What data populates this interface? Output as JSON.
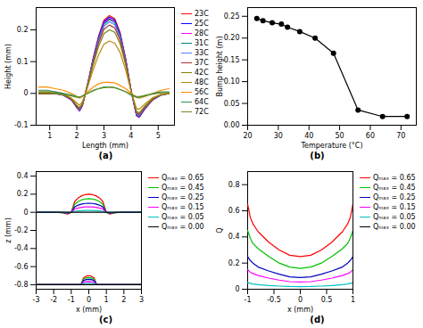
{
  "chart_data": [
    {
      "type": "line",
      "title": "(a)",
      "xlabel": "Length (mm)",
      "ylabel": "Height (mm)",
      "xlim": [
        0.5,
        5.6
      ],
      "xticks": [
        1,
        2,
        3,
        4,
        5
      ],
      "ylim": [
        -0.1,
        0.27
      ],
      "yticks": [
        -0.1,
        0,
        0.1,
        0.2
      ],
      "legend": "right",
      "x": [
        0.6,
        0.9,
        1.2,
        1.5,
        1.8,
        2,
        2.1,
        2.2,
        2.4,
        2.6,
        2.8,
        3,
        3.2,
        3.4,
        3.6,
        3.8,
        4,
        4.2,
        4.3,
        4.5,
        4.8,
        5.1,
        5.4
      ],
      "series": [
        {
          "name": "23C",
          "color": "#ff0000",
          "values": [
            0,
            0,
            0,
            -0.005,
            -0.02,
            -0.045,
            -0.055,
            -0.04,
            0.03,
            0.11,
            0.18,
            0.23,
            0.245,
            0.235,
            0.19,
            0.11,
            0.01,
            -0.07,
            -0.075,
            -0.05,
            -0.02,
            -0.005,
            0
          ]
        },
        {
          "name": "25C",
          "color": "#0000ff",
          "values": [
            0,
            0,
            0,
            -0.005,
            -0.02,
            -0.044,
            -0.054,
            -0.039,
            0.029,
            0.108,
            0.176,
            0.225,
            0.24,
            0.23,
            0.186,
            0.108,
            0.01,
            -0.069,
            -0.074,
            -0.049,
            -0.02,
            -0.005,
            0
          ]
        },
        {
          "name": "28C",
          "color": "#ff00ff",
          "values": [
            0,
            0,
            0,
            -0.005,
            -0.019,
            -0.043,
            -0.053,
            -0.038,
            0.029,
            0.105,
            0.173,
            0.221,
            0.235,
            0.225,
            0.182,
            0.105,
            0.01,
            -0.067,
            -0.072,
            -0.048,
            -0.019,
            -0.005,
            0
          ]
        },
        {
          "name": "31C",
          "color": "#008080",
          "values": [
            0,
            0,
            0,
            -0.005,
            -0.019,
            -0.043,
            -0.052,
            -0.038,
            0.028,
            0.104,
            0.17,
            0.218,
            0.232,
            0.223,
            0.18,
            0.104,
            0.009,
            -0.066,
            -0.071,
            -0.047,
            -0.019,
            -0.005,
            0
          ]
        },
        {
          "name": "33C",
          "color": "#4f81ff",
          "values": [
            0,
            0,
            0,
            -0.005,
            -0.018,
            -0.041,
            -0.05,
            -0.037,
            0.028,
            0.101,
            0.165,
            0.211,
            0.225,
            0.216,
            0.174,
            0.101,
            0.009,
            -0.064,
            -0.069,
            -0.046,
            -0.018,
            -0.005,
            0
          ]
        },
        {
          "name": "37C",
          "color": "#b03030",
          "values": [
            0,
            0,
            0,
            -0.004,
            -0.018,
            -0.04,
            -0.048,
            -0.035,
            0.026,
            0.097,
            0.158,
            0.202,
            0.215,
            0.206,
            0.167,
            0.097,
            0.009,
            -0.061,
            -0.066,
            -0.044,
            -0.018,
            -0.004,
            0
          ]
        },
        {
          "name": "42C",
          "color": "#808000",
          "values": [
            0,
            0,
            0,
            -0.004,
            -0.016,
            -0.037,
            -0.045,
            -0.033,
            0.024,
            0.09,
            0.147,
            0.188,
            0.2,
            0.192,
            0.155,
            0.09,
            0.008,
            -0.057,
            -0.061,
            -0.041,
            -0.016,
            -0.004,
            0
          ]
        },
        {
          "name": "48C",
          "color": "#b8860b",
          "values": [
            0.005,
            0.005,
            0.005,
            0,
            -0.015,
            -0.03,
            -0.037,
            -0.027,
            0.02,
            0.074,
            0.121,
            0.155,
            0.165,
            0.158,
            0.128,
            0.074,
            0.007,
            -0.047,
            -0.05,
            -0.034,
            -0.013,
            -0.003,
            0
          ]
        },
        {
          "name": "56C",
          "color": "#ff8c00",
          "values": [
            0.02,
            0.02,
            0.015,
            0.01,
            0,
            -0.01,
            -0.015,
            -0.01,
            0.005,
            0.02,
            0.03,
            0.035,
            0.035,
            0.033,
            0.025,
            0.015,
            0,
            -0.012,
            -0.015,
            -0.01,
            0,
            0.01,
            0.015
          ]
        },
        {
          "name": "64C",
          "color": "#2e8b57",
          "values": [
            0.01,
            0.01,
            0.005,
            0,
            -0.005,
            -0.01,
            -0.012,
            -0.008,
            0,
            0.01,
            0.015,
            0.02,
            0.02,
            0.018,
            0.012,
            0.005,
            -0.005,
            -0.012,
            -0.012,
            -0.008,
            0,
            0.005,
            0.005
          ]
        },
        {
          "name": "72C",
          "color": "#6b8e23",
          "values": [
            0.005,
            0.005,
            0,
            -0.003,
            -0.008,
            -0.012,
            -0.012,
            -0.008,
            0,
            0.008,
            0.015,
            0.018,
            0.02,
            0.018,
            0.012,
            0.005,
            -0.003,
            -0.01,
            -0.01,
            -0.006,
            -0.002,
            0.002,
            0.002
          ]
        }
      ]
    },
    {
      "type": "line",
      "title": "(b)",
      "xlabel": "Temperature (°C)",
      "ylabel": "Bump height (m)",
      "xlim": [
        20,
        75
      ],
      "xticks": [
        20,
        30,
        40,
        50,
        60,
        70
      ],
      "ylim": [
        0,
        0.27
      ],
      "yticks": [
        {
          "value": 0,
          "label": "0.00"
        },
        {
          "value": 0.05,
          "label": "0.05"
        },
        {
          "value": 0.1,
          "label": "0.10"
        },
        {
          "value": 0.15,
          "label": "0.15"
        },
        {
          "value": 0.2,
          "label": "0.20"
        },
        {
          "value": 0.25,
          "label": "0.25"
        }
      ],
      "x": [
        23,
        25,
        28,
        31,
        33,
        37,
        42,
        48,
        56,
        64,
        72
      ],
      "series": [
        {
          "color": "#000000",
          "marker": "circle",
          "line_style": "solid",
          "values": [
            0.245,
            0.24,
            0.235,
            0.232,
            0.225,
            0.215,
            0.2,
            0.165,
            0.035,
            0.02,
            0.02
          ]
        }
      ]
    },
    {
      "type": "line",
      "title": "(c)",
      "xlabel": "x (mm)",
      "ylabel": "z (mm)",
      "xlim": [
        -3,
        3
      ],
      "xticks": [
        -3,
        -2,
        -1,
        0,
        1,
        2,
        3
      ],
      "ylim": [
        -0.85,
        0.45
      ],
      "yticks": [
        -0.8,
        -0.6,
        -0.4,
        -0.2,
        0,
        0.2,
        0.4
      ],
      "legend": "right",
      "x": [
        -3,
        -2,
        -1.5,
        -1.2,
        -1,
        -0.8,
        -0.6,
        -0.4,
        -0.2,
        0,
        0.2,
        0.4,
        0.6,
        0.8,
        1,
        1.2,
        1.5,
        2,
        3,
        3,
        -3,
        -0.45,
        -0.3,
        -0.15,
        0,
        0.15,
        0.3,
        0.45,
        3
      ],
      "series": [
        {
          "name": "Qₘₐₓ = 0.65",
          "color": "#ff0000",
          "values": [
            0,
            0,
            -0.005,
            -0.02,
            0,
            0.12,
            0.16,
            0.183,
            0.196,
            0.2,
            0.196,
            0.183,
            0.16,
            0.12,
            0,
            -0.02,
            -0.005,
            0,
            0,
            null,
            -0.8,
            -0.8,
            -0.725,
            -0.706,
            -0.7,
            -0.706,
            -0.725,
            -0.8,
            -0.8
          ]
        },
        {
          "name": "Qₘₐₓ = 0.45",
          "color": "#00c000",
          "values": [
            0,
            0,
            -0.004,
            -0.015,
            0,
            0.09,
            0.12,
            0.138,
            0.147,
            0.15,
            0.147,
            0.138,
            0.12,
            0.09,
            0,
            -0.015,
            -0.004,
            0,
            0,
            null,
            -0.8,
            -0.8,
            -0.74,
            -0.725,
            -0.72,
            -0.725,
            -0.74,
            -0.8,
            -0.8
          ]
        },
        {
          "name": "Qₘₐₓ = 0.25",
          "color": "#0000c0",
          "values": [
            0,
            0,
            -0.003,
            -0.01,
            0,
            0.06,
            0.08,
            0.092,
            0.098,
            0.1,
            0.098,
            0.092,
            0.08,
            0.06,
            0,
            -0.01,
            -0.003,
            0,
            0,
            null,
            -0.8,
            -0.8,
            -0.755,
            -0.743,
            -0.74,
            -0.743,
            -0.755,
            -0.8,
            -0.8
          ]
        },
        {
          "name": "Qₘₐₓ = 0.15",
          "color": "#ff00ff",
          "values": [
            0,
            0,
            -0.002,
            -0.006,
            0,
            0.036,
            0.048,
            0.055,
            0.059,
            0.06,
            0.059,
            0.055,
            0.048,
            0.036,
            0,
            -0.006,
            -0.002,
            0,
            0,
            null,
            -0.8,
            -0.8,
            -0.774,
            -0.767,
            -0.765,
            -0.767,
            -0.774,
            -0.8,
            -0.8
          ]
        },
        {
          "name": "Qₘₐₓ = 0.05",
          "color": "#00c0c0",
          "values": [
            0,
            0,
            0,
            -0.002,
            0,
            0.012,
            0.016,
            0.018,
            0.02,
            0.02,
            0.02,
            0.018,
            0.016,
            0.012,
            0,
            -0.002,
            0,
            0,
            0,
            null,
            -0.8,
            -0.8,
            -0.789,
            -0.786,
            -0.785,
            -0.786,
            -0.789,
            -0.8,
            -0.8
          ]
        },
        {
          "name": "Qₘₐₓ = 0.00",
          "color": "#000000",
          "values": [
            0,
            0,
            0,
            0,
            0,
            0,
            0,
            0,
            0,
            0,
            0,
            0,
            0,
            0,
            0,
            0,
            0,
            0,
            0,
            null,
            -0.8,
            -0.8,
            -0.8,
            -0.8,
            -0.8,
            -0.8,
            -0.8,
            -0.8,
            -0.8
          ]
        }
      ]
    },
    {
      "type": "line",
      "title": "(d)",
      "xlabel": "x (mm)",
      "ylabel": "Q",
      "xlim": [
        -1,
        1
      ],
      "xticks": [
        -1,
        -0.5,
        0,
        0.5,
        1
      ],
      "ylim": [
        0,
        0.9
      ],
      "yticks": [
        0,
        0.2,
        0.4,
        0.6,
        0.8
      ],
      "legend": "right",
      "x": [
        -1,
        -0.95,
        -0.9,
        -0.8,
        -0.6,
        -0.4,
        -0.2,
        0,
        0.2,
        0.4,
        0.6,
        0.8,
        0.9,
        0.95,
        1
      ],
      "series": [
        {
          "name": "Qₘₐₓ = 0.65",
          "color": "#ff0000",
          "values": [
            0.65,
            0.55,
            0.5,
            0.44,
            0.36,
            0.3,
            0.26,
            0.25,
            0.26,
            0.3,
            0.36,
            0.44,
            0.5,
            0.55,
            0.65
          ]
        },
        {
          "name": "Qₘₐₓ = 0.45",
          "color": "#00c000",
          "values": [
            0.45,
            0.39,
            0.35,
            0.31,
            0.25,
            0.2,
            0.17,
            0.16,
            0.17,
            0.2,
            0.25,
            0.31,
            0.35,
            0.39,
            0.45
          ]
        },
        {
          "name": "Qₘₐₓ = 0.25",
          "color": "#0000c0",
          "values": [
            0.25,
            0.22,
            0.2,
            0.17,
            0.14,
            0.115,
            0.095,
            0.09,
            0.095,
            0.115,
            0.14,
            0.17,
            0.2,
            0.22,
            0.25
          ]
        },
        {
          "name": "Qₘₐₓ = 0.15",
          "color": "#ff00ff",
          "values": [
            0.15,
            0.13,
            0.12,
            0.105,
            0.085,
            0.07,
            0.058,
            0.055,
            0.058,
            0.07,
            0.085,
            0.105,
            0.12,
            0.13,
            0.15
          ]
        },
        {
          "name": "Qₘₐₓ = 0.05",
          "color": "#00c0c0",
          "values": [
            0.05,
            0.045,
            0.04,
            0.035,
            0.028,
            0.024,
            0.021,
            0.02,
            0.021,
            0.024,
            0.028,
            0.035,
            0.04,
            0.045,
            0.05
          ]
        },
        {
          "name": "Qₘₐₓ = 0.00",
          "color": "#000000",
          "values": [
            0,
            0,
            0,
            0,
            0,
            0,
            0,
            0,
            0,
            0,
            0,
            0,
            0,
            0,
            0
          ]
        }
      ]
    }
  ]
}
